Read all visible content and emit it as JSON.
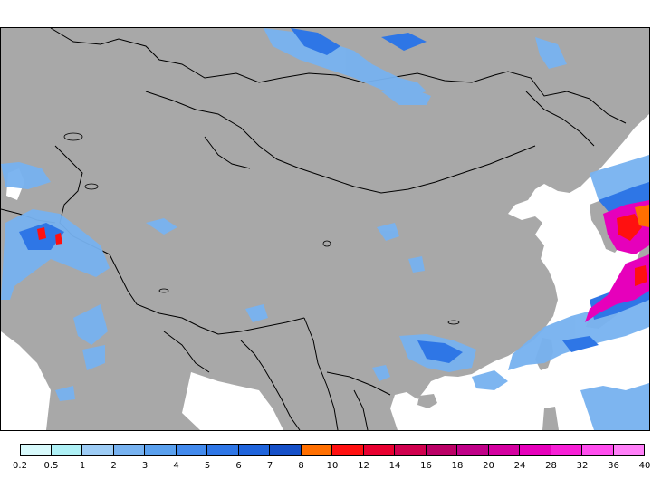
{
  "legend": {
    "colors": [
      "#d8fafc",
      "#aef0f5",
      "#9dccf5",
      "#77b2f0",
      "#5aa0ee",
      "#428aed",
      "#2e76e6",
      "#1f64dc",
      "#1650c8",
      "#ff6f00",
      "#ff1010",
      "#e80030",
      "#d0004e",
      "#bb0066",
      "#c00088",
      "#d400a0",
      "#e600bb",
      "#f71fd6",
      "#ff4dee",
      "#ff7ff8"
    ],
    "labels": [
      "0.2",
      "0.5",
      "1",
      "2",
      "3",
      "4",
      "5",
      "6",
      "7",
      "8",
      "10",
      "12",
      "14",
      "16",
      "18",
      "20",
      "24",
      "28",
      "32",
      "36",
      "40"
    ]
  },
  "map": {
    "land_color": "#a8a8a8",
    "sea_color": "#ffffff",
    "border_color": "#000000"
  }
}
